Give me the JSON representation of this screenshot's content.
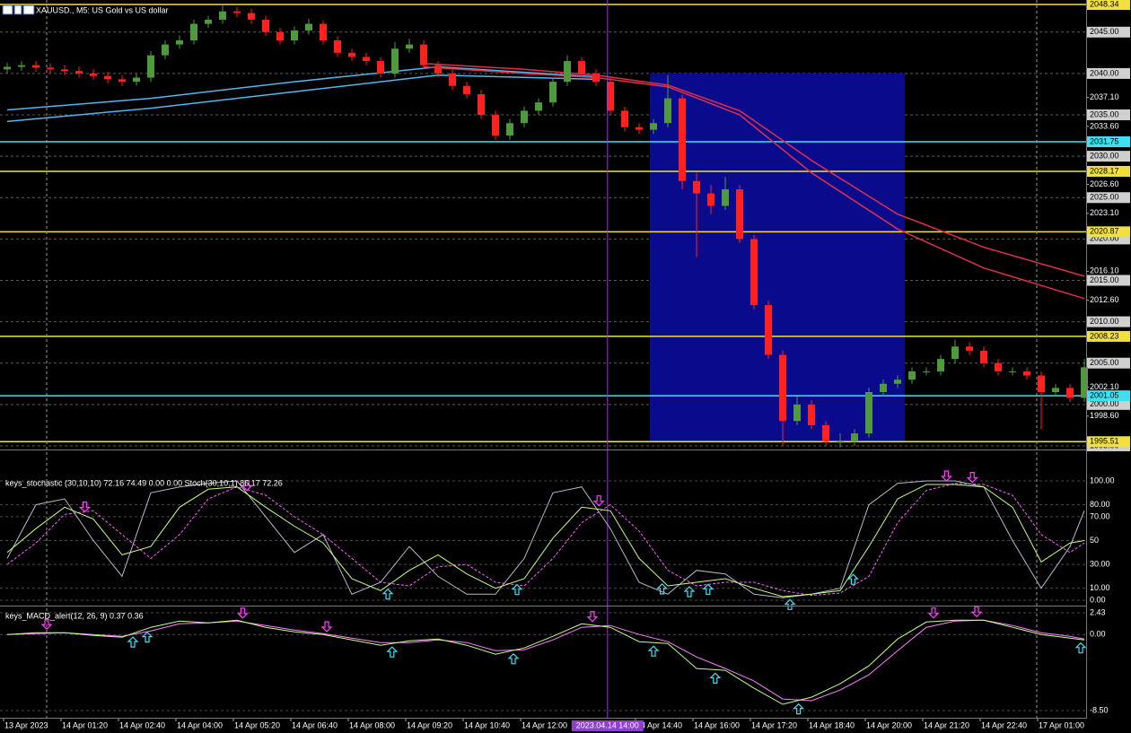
{
  "chart_data": [
    {
      "type": "candlestick",
      "title": "XAUUSD., M5: US Gold vs US dollar",
      "up_color": "#4f9a3c",
      "down_color": "#ff2020",
      "xlim": [
        -0.5,
        75.125
      ],
      "xticks": [
        {
          "value": -0.25,
          "label": "13 Apr 2023"
        },
        {
          "value": 3.75,
          "label": "14 Apr 01:20"
        },
        {
          "value": 7.75,
          "label": "14 Apr 02:40"
        },
        {
          "value": 11.75,
          "label": "14 Apr 04:00"
        },
        {
          "value": 15.75,
          "label": "14 Apr 05:20"
        },
        {
          "value": 19.75,
          "label": "14 Apr 06:40"
        },
        {
          "value": 23.75,
          "label": "14 Apr 08:00"
        },
        {
          "value": 27.75,
          "label": "14 Apr 09:20"
        },
        {
          "value": 31.75,
          "label": "14 Apr 10:40"
        },
        {
          "value": 35.75,
          "label": "14 Apr 12:00"
        },
        {
          "value": 43.75,
          "label": "14 Apr 14:40"
        },
        {
          "value": 47.75,
          "label": "14 Apr 16:00"
        },
        {
          "value": 51.75,
          "label": "14 Apr 17:20"
        },
        {
          "value": 55.75,
          "label": "14 Apr 18:40"
        },
        {
          "value": 59.75,
          "label": "14 Apr 20:00"
        },
        {
          "value": 63.75,
          "label": "14 Apr 21:20"
        },
        {
          "value": 67.75,
          "label": "14 Apr 22:40"
        },
        {
          "value": 71.75,
          "label": "17 Apr 01:00"
        }
      ],
      "ylim": [
        1994.67,
        2048.88
      ],
      "yticks": [
        {
          "value": 2045,
          "label": "2045.00"
        },
        {
          "value": 2040,
          "label": "2040.00"
        },
        {
          "value": 2035,
          "label": "2035.00"
        },
        {
          "value": 2030,
          "label": "2030.00"
        },
        {
          "value": 2025,
          "label": "2025.00"
        },
        {
          "value": 2020,
          "label": "2020.00"
        },
        {
          "value": 2015,
          "label": "2015.00"
        },
        {
          "value": 2010,
          "label": "2010.00"
        },
        {
          "value": 2005,
          "label": "2005.00"
        },
        {
          "value": 2000,
          "label": "2000.00"
        },
        {
          "value": 1995,
          "label": "1995.00"
        }
      ],
      "yticks_minor": [
        {
          "value": 2037.1,
          "label": "2037.10"
        },
        {
          "value": 2033.6,
          "label": "2033.60"
        },
        {
          "value": 2026.6,
          "label": "2026.60"
        },
        {
          "value": 2023.1,
          "label": "2023.10"
        },
        {
          "value": 2016.1,
          "label": "2016.10"
        },
        {
          "value": 2012.6,
          "label": "2012.60"
        },
        {
          "value": 2002.1,
          "label": "2002.10"
        },
        {
          "value": 1998.6,
          "label": "1998.60"
        }
      ],
      "grid": true,
      "levels": [
        {
          "value": 2048.34,
          "color": "#f0e040"
        },
        {
          "value": 2031.75,
          "color": "#40e0f0"
        },
        {
          "value": 2028.17,
          "color": "#f0e040"
        },
        {
          "value": 2020.87,
          "color": "#f0e040"
        },
        {
          "value": 2008.23,
          "color": "#f0e040"
        },
        {
          "value": 2001.05,
          "color": "#40e0f0"
        },
        {
          "value": 1995.51,
          "color": "#f0e040"
        }
      ],
      "rectangle": {
        "x": [
          44.75,
          62.5
        ],
        "y": [
          1995.4,
          2040
        ],
        "color": "#0a0a8c"
      },
      "crosshair": {
        "x": 41.8,
        "label": "2023.04.14 14:00",
        "color": "#9040d0"
      },
      "lines": [
        {
          "color": "#4fb8f0",
          "x": [
            0,
            10,
            20,
            30,
            41
          ],
          "values": [
            2035.6,
            2037,
            2039,
            2040.8,
            2039.6
          ]
        },
        {
          "color": "#4fb8f0",
          "x": [
            0,
            10,
            20,
            30,
            41
          ],
          "values": [
            2034.2,
            2035.8,
            2037.8,
            2039.8,
            2039.3
          ]
        },
        {
          "color": "#e0304a",
          "x": [
            29,
            36,
            41,
            46,
            51,
            56,
            62,
            68,
            75
          ],
          "values": [
            2041.2,
            2040.5,
            2039.8,
            2038.6,
            2035.5,
            2029.5,
            2023,
            2019,
            2015.5
          ]
        },
        {
          "color": "#e0304a",
          "x": [
            29,
            36,
            41,
            46,
            51,
            56,
            62,
            68,
            75
          ],
          "values": [
            2040.8,
            2040,
            2039.5,
            2038.4,
            2035,
            2028,
            2021.2,
            2016.5,
            2012.8
          ]
        }
      ],
      "open": [
        2040.5,
        2040.8,
        2041,
        2040.7,
        2040.5,
        2040.3,
        2040,
        2039.7,
        2039.3,
        2039,
        2039.5,
        2042.2,
        2043.5,
        2044,
        2046,
        2046.5,
        2047.5,
        2047.3,
        2046.5,
        2045,
        2044,
        2045.2,
        2046,
        2044,
        2042.5,
        2042,
        2041.5,
        2040,
        2043,
        2043.5,
        2041,
        2040,
        2038.5,
        2037.5,
        2035,
        2032.5,
        2034,
        2035.5,
        2036.5,
        2039,
        2041.5,
        2040,
        2039,
        2035.5,
        2033.5,
        2033.2,
        2034,
        2037,
        2027,
        2025.5,
        2024,
        2026,
        2020,
        2012,
        2006,
        1998,
        2000,
        1997.5,
        1995.5,
        1995.5,
        1996.5,
        2001.5,
        2002.5,
        2003,
        2004,
        2004,
        2005.5,
        2007,
        2006.5,
        2005,
        2004,
        2004,
        2003.5,
        2001.5,
        2002,
        2000.8
      ],
      "high": [
        2041.3,
        2041.5,
        2041.5,
        2041.2,
        2041,
        2040.8,
        2040.5,
        2040.2,
        2039.8,
        2040,
        2042.7,
        2044,
        2044.6,
        2046.5,
        2047,
        2048.2,
        2048,
        2047.8,
        2047,
        2045.5,
        2045.7,
        2046.6,
        2046.4,
        2044.5,
        2043,
        2042.5,
        2042,
        2043.8,
        2044.2,
        2044,
        2041.5,
        2040.5,
        2039,
        2038,
        2035.5,
        2034.5,
        2036,
        2037,
        2039.5,
        2042.2,
        2042,
        2040.5,
        2039.5,
        2036,
        2034,
        2034.5,
        2039.8,
        2037.5,
        2028,
        2026.5,
        2027.5,
        2026.5,
        2020.5,
        2012.5,
        2006.5,
        2001,
        2000.5,
        1998,
        1996.5,
        1997,
        2002,
        2003,
        2003.5,
        2004.5,
        2004.5,
        2006,
        2007.8,
        2007.5,
        2007,
        2005.5,
        2004.5,
        2004.5,
        2004,
        2002.5,
        2002.5,
        2005.5
      ],
      "low": [
        2040,
        2040.3,
        2040.2,
        2040,
        2039.8,
        2039.5,
        2039.2,
        2038.8,
        2038.5,
        2038.5,
        2039,
        2041.7,
        2043,
        2043.5,
        2045.5,
        2046,
        2046.8,
        2046,
        2044.5,
        2043.5,
        2043.5,
        2044.7,
        2043.5,
        2042,
        2041.5,
        2041,
        2039.5,
        2039.5,
        2042.5,
        2040.5,
        2039.5,
        2038,
        2037,
        2034.5,
        2032,
        2032,
        2033.5,
        2035,
        2036,
        2038.5,
        2039.5,
        2038.5,
        2035,
        2033,
        2032.7,
        2032.7,
        2033.5,
        2026,
        2017.8,
        2023,
        2023.5,
        2019.5,
        2011.5,
        2005.5,
        1995,
        1997.5,
        1997,
        1995,
        1994.8,
        1995,
        1996,
        2001,
        2002,
        2002.5,
        2003.5,
        2003.5,
        2005,
        2006,
        2004.5,
        2003.5,
        2003.5,
        2003,
        1997,
        2001,
        2000.3,
        2000.3
      ],
      "close": [
        2040.8,
        2041,
        2040.7,
        2040.5,
        2040.3,
        2040,
        2039.7,
        2039.3,
        2039,
        2039.5,
        2042.2,
        2043.5,
        2044,
        2046,
        2046.5,
        2047.5,
        2047.3,
        2046.5,
        2045,
        2044,
        2045.2,
        2046,
        2044,
        2042.5,
        2042,
        2041.5,
        2040,
        2043,
        2043.5,
        2041,
        2040,
        2038.5,
        2037.5,
        2035,
        2032.5,
        2034,
        2035.5,
        2036.5,
        2039,
        2041.5,
        2040,
        2039,
        2035.5,
        2033.5,
        2033.2,
        2034,
        2037,
        2027,
        2025.5,
        2024,
        2026,
        2020,
        2012,
        2006,
        1998,
        2000,
        1997.5,
        1995.5,
        1995.5,
        1996.5,
        2001.5,
        2002.5,
        2003,
        2004,
        2004,
        2005.5,
        2007,
        2006.5,
        2005,
        2004,
        2004,
        2003.5,
        2001.5,
        2002,
        2000.8,
        2004.5
      ]
    },
    {
      "type": "line",
      "title": "keys_stochastic (30,10,10) 72.16 74.49 0.00 0.00 Stoch(30,10,1) 86.17 72.26",
      "ylim": [
        -3.8,
        105.3
      ],
      "yticks": [
        {
          "value": 100,
          "label": "100.00"
        },
        {
          "value": 80,
          "label": "80.00"
        },
        {
          "value": 70,
          "label": "70.00"
        },
        50,
        {
          "value": 30,
          "label": "30.00"
        },
        {
          "value": 10,
          "label": "10.00"
        },
        {
          "value": 0,
          "label": "0.00"
        }
      ],
      "x": [
        0,
        2,
        4,
        6,
        8,
        10,
        12,
        14,
        16,
        18,
        20,
        22,
        24,
        26,
        28,
        30,
        32,
        34,
        36,
        38,
        40,
        42,
        44,
        46,
        48,
        50,
        52,
        54,
        56,
        58,
        60,
        62,
        64,
        66,
        68,
        70,
        72,
        74,
        75
      ],
      "series": [
        {
          "color": "#b8b8c8",
          "values": [
            35,
            80,
            85,
            50,
            20,
            90,
            95,
            98,
            100,
            70,
            40,
            55,
            5,
            15,
            45,
            20,
            5,
            5,
            35,
            90,
            95,
            60,
            15,
            5,
            25,
            22,
            5,
            2,
            5,
            10,
            80,
            98,
            100,
            100,
            95,
            50,
            10,
            45,
            75
          ]
        },
        {
          "color": "#ff60ff",
          "dash": true,
          "values": [
            30,
            48,
            72,
            75,
            55,
            35,
            55,
            85,
            95,
            88,
            70,
            55,
            35,
            15,
            12,
            28,
            30,
            15,
            12,
            35,
            65,
            80,
            58,
            25,
            12,
            15,
            15,
            8,
            4,
            6,
            20,
            65,
            92,
            98,
            97,
            88,
            55,
            40,
            48
          ]
        },
        {
          "color": "#c8ff80",
          "values": [
            40,
            60,
            78,
            68,
            38,
            45,
            78,
            93,
            95,
            78,
            62,
            48,
            18,
            8,
            25,
            38,
            22,
            10,
            18,
            52,
            78,
            75,
            35,
            12,
            15,
            18,
            10,
            3,
            5,
            8,
            45,
            85,
            97,
            97,
            95,
            78,
            32,
            48,
            50
          ]
        }
      ],
      "signals": {
        "up_color": "#40e0f0",
        "down_color": "#ff40ff",
        "up": [
          26.5,
          35.5,
          45.6,
          47.5,
          48.8,
          54.5,
          58.9
        ],
        "down": [
          5.4,
          16.7,
          41.2,
          65.4,
          67.2
        ]
      }
    },
    {
      "type": "line",
      "title": "keys_MACD_alert(12, 26, 9) 0.37 0.36",
      "ylim": [
        -9.3,
        3.13
      ],
      "yticks": [
        2.43,
        {
          "value": 0,
          "label": "0.00"
        },
        {
          "value": -8.5,
          "label": "-8.50"
        }
      ],
      "x": [
        0,
        2,
        4,
        6,
        8,
        10,
        12,
        14,
        16,
        18,
        20,
        22,
        24,
        26,
        28,
        30,
        32,
        34,
        36,
        38,
        40,
        42,
        44,
        46,
        48,
        50,
        52,
        54,
        56,
        58,
        60,
        62,
        64,
        66,
        68,
        70,
        72,
        74,
        75
      ],
      "series": [
        {
          "color": "#ff80ff",
          "values": [
            0,
            0.1,
            0.2,
            0,
            -0.2,
            0.4,
            1.2,
            1.3,
            1.5,
            1,
            0.5,
            0.1,
            -0.4,
            -0.9,
            -0.9,
            -0.6,
            -0.9,
            -1.8,
            -1.7,
            -0.6,
            0.8,
            1,
            0,
            -0.8,
            -2.5,
            -3.8,
            -5.2,
            -7.2,
            -7.4,
            -6.2,
            -4.5,
            -1.8,
            0.8,
            1.5,
            1.6,
            1,
            0.2,
            -0.2,
            -0.5
          ]
        },
        {
          "color": "#c8ff80",
          "values": [
            0,
            0.2,
            0.2,
            -0.1,
            -0.3,
            0.8,
            1.5,
            1.3,
            1.6,
            0.8,
            0.3,
            0,
            -0.6,
            -1.2,
            -0.7,
            -0.5,
            -1.2,
            -2.2,
            -1.5,
            -0.2,
            1.2,
            0.8,
            -0.8,
            -1,
            -3.8,
            -4,
            -6,
            -7.8,
            -7,
            -5.5,
            -3.5,
            -0.5,
            1.4,
            1.6,
            1.6,
            0.8,
            0,
            -0.4,
            -0.6
          ]
        }
      ],
      "signals": {
        "up_color": "#40e0f0",
        "down_color": "#ff40ff",
        "up": [
          8.75,
          9.75,
          26.8,
          35.25,
          45,
          49.3,
          55.1,
          74.75
        ],
        "down": [
          2.75,
          16.4,
          22.25,
          40.75,
          64.5,
          67.5
        ]
      }
    }
  ]
}
